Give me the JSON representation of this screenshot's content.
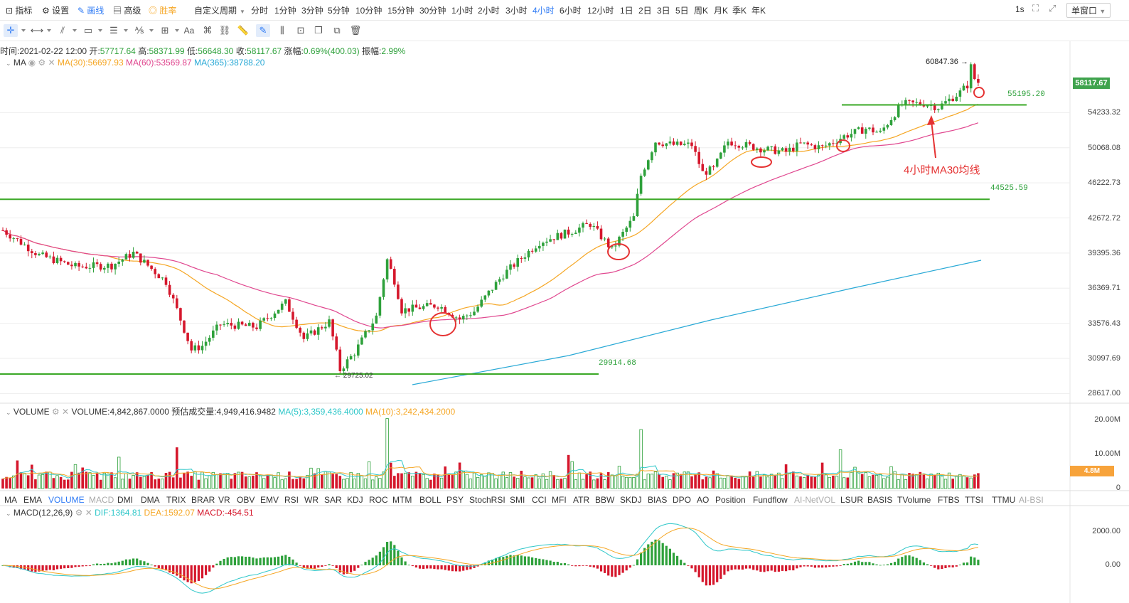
{
  "topbar": {
    "left_items": [
      {
        "label": "指标",
        "icon": "chart-icon"
      },
      {
        "label": "设置",
        "icon": "gear-icon"
      },
      {
        "label": "画线",
        "icon": "pencil-icon",
        "active": true
      },
      {
        "label": "高级",
        "icon": "layout-icon"
      },
      {
        "label": "胜率",
        "icon": "target-icon",
        "orange": true
      }
    ],
    "custom_period": "自定义周期",
    "periods": [
      "分时",
      "1分钟",
      "3分钟",
      "5分钟",
      "10分钟",
      "15分钟",
      "30分钟",
      "1小时",
      "2小时",
      "3小时",
      "4小时",
      "6小时",
      "12小时",
      "1日",
      "2日",
      "3日",
      "5日",
      "周K",
      "月K",
      "季K",
      "年K"
    ],
    "active_period": "4小时",
    "interval": "1s",
    "window_mode": "单窗口"
  },
  "ohlc": {
    "time_label": "时间:",
    "time": "2021-02-22 12:00",
    "open_label": "开:",
    "open": "57717.64",
    "high_label": "高:",
    "high": "58371.99",
    "low_label": "低:",
    "low": "56648.30",
    "close_label": "收:",
    "close": "58117.67",
    "change_label": "涨幅:",
    "change": "0.69%(400.03)",
    "amp_label": "振幅:",
    "amplitude": "2.99%"
  },
  "ma_legend": {
    "name": "MA",
    "ma30": "MA(30):56697.93",
    "ma60": "MA(60):53569.87",
    "ma365": "MA(365):38788.20"
  },
  "price_axis": [
    "54233.32",
    "50068.08",
    "46222.73",
    "42672.72",
    "39395.36",
    "36369.71",
    "33576.43",
    "30997.69",
    "28617.00"
  ],
  "current_price": "58117.67",
  "annotations": {
    "peak": "60847.36",
    "level_55195": "55195.20",
    "level_44525": "44525.59",
    "level_29914": "29914.68",
    "low_label": "29725.02",
    "ma30_note": "4小时MA30均线"
  },
  "volume_legend": {
    "name": "VOLUME",
    "volume": "VOLUME:4,842,867.0000",
    "estimate": "预估成交量:4,949,416.9482",
    "ma5": "MA(5):3,359,436.4000",
    "ma10": "MA(10):3,242,434.2000"
  },
  "volume_axis": [
    "20.00M",
    "10.00M",
    "0"
  ],
  "volume_badge": "4.8M",
  "indicators": [
    "MA",
    "EMA",
    "VOLUME",
    "MACD",
    "DMI",
    "DMA",
    "TRIX",
    "BRAR",
    "VR",
    "OBV",
    "EMV",
    "RSI",
    "WR",
    "SAR",
    "KDJ",
    "ROC",
    "MTM",
    "BOLL",
    "PSY",
    "StochRSI",
    "SMI",
    "CCI",
    "MFI",
    "ATR",
    "BBW",
    "SKDJ",
    "BIAS",
    "DPO",
    "AO",
    "Position",
    "Fundflow",
    "AI-NetVOL",
    "LSUR",
    "BASIS",
    "TVolume",
    "FTBS",
    "TTSI",
    "TTMU",
    "AI-BSI"
  ],
  "indicators_active": "VOLUME",
  "indicators_grey": [
    "MACD",
    "AI-NetVOL",
    "AI-BSI"
  ],
  "macd_legend": {
    "name": "MACD(12,26,9)",
    "dif": "DIF:1364.81",
    "dea": "DEA:1592.07",
    "macd": "MACD:-454.51"
  },
  "macd_axis": [
    "2000.00",
    "0.00"
  ],
  "colors": {
    "up": "#2ea13b",
    "down": "#d5172c",
    "ma30": "#f5a623",
    "ma60": "#e0478f",
    "ma365": "#29a9d6",
    "support": "#3aa826",
    "accent": "#2f7bf5",
    "annotation": "#e53232",
    "price_badge": "#3fa34d",
    "vol_badge": "#f7a33b"
  }
}
